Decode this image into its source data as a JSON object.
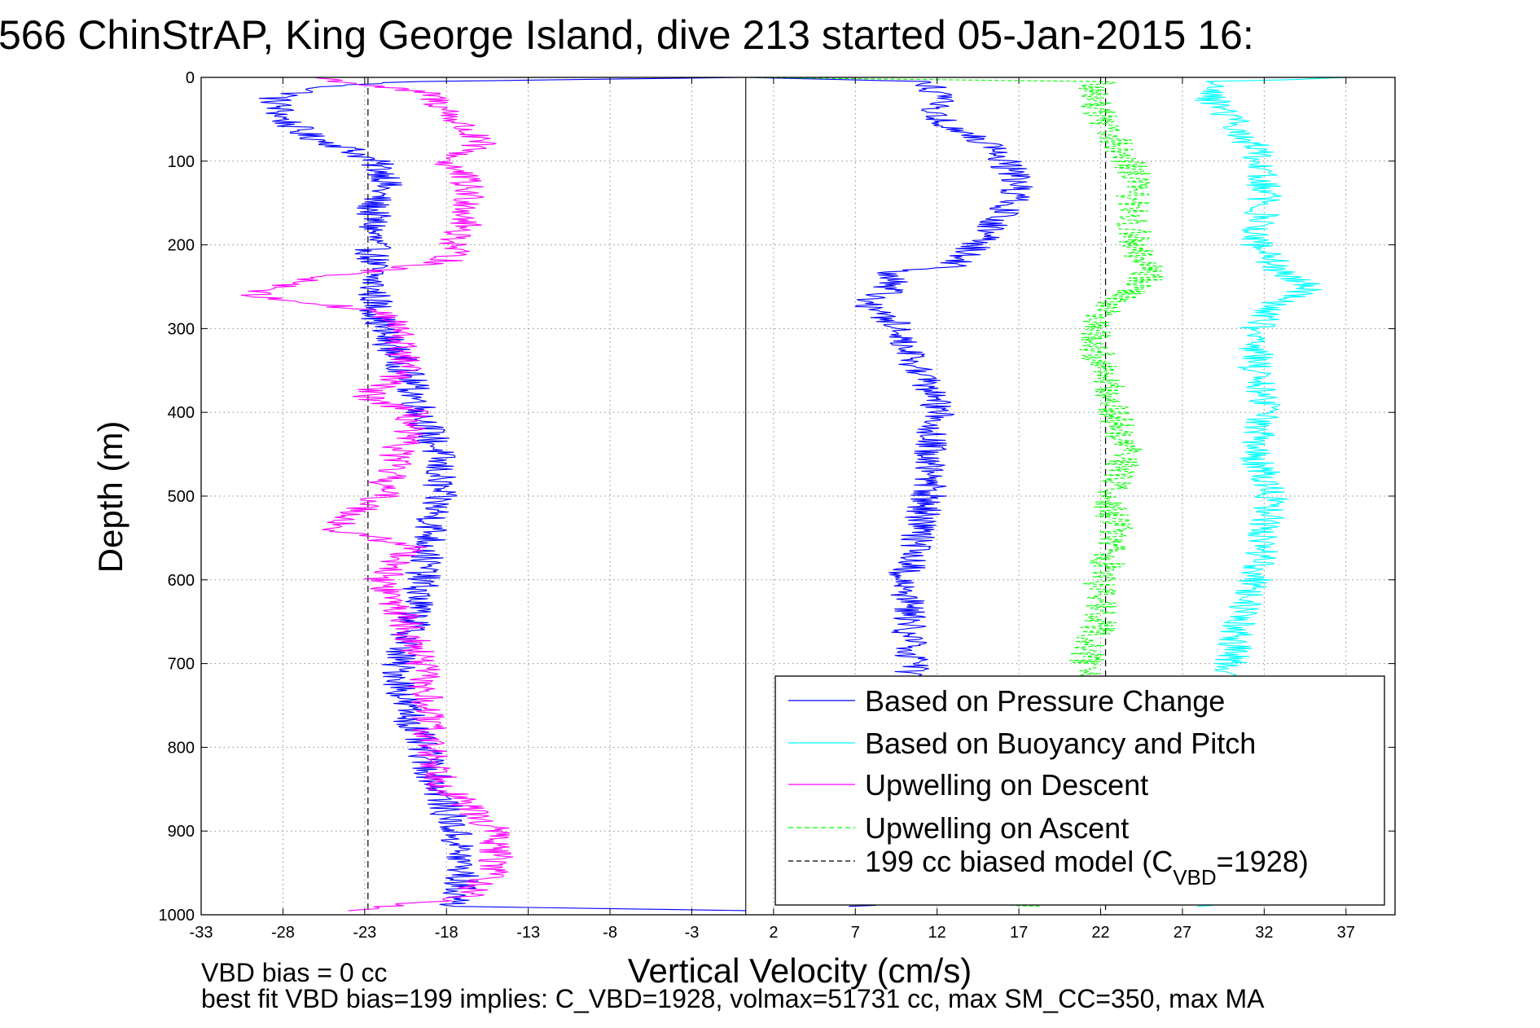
{
  "chart_data": {
    "type": "line",
    "title": "566 ChinStrAP, King George Island, dive 213 started 05-Jan-2015 16:",
    "xlabel": "Vertical Velocity (cm/s)",
    "ylabel": "Depth (m)",
    "xlim": [
      -33,
      40
    ],
    "ylim": [
      0,
      1000
    ],
    "y_reversed": true,
    "grid": true,
    "x_ticks": [
      "-33",
      "-28",
      "-23",
      "-18",
      "-13",
      "-8",
      "-3",
      "2",
      "7",
      "12",
      "17",
      "22",
      "27",
      "32",
      "37"
    ],
    "y_ticks": [
      "0",
      "100",
      "200",
      "300",
      "400",
      "500",
      "600",
      "700",
      "800",
      "900",
      "1000"
    ],
    "legend_position": "bottom-right",
    "legend": {
      "pressure": "Based on Pressure Change",
      "buoyancy": "Based on Buoyancy and Pitch",
      "up_descent": "Upwelling on Descent",
      "up_ascent": "Upwelling on Ascent",
      "model_prefix": "199 cc biased model (C",
      "model_sub": "VBD",
      "model_suffix": "=1928)"
    },
    "footer": {
      "line1": "VBD bias = 0 cc",
      "line2": "best fit VBD bias=199 implies: C_VBD=1928, volmax=51731 cc, max SM_CC=350, max MA"
    },
    "colors": {
      "pressure": "#0000ff",
      "buoyancy": "#00ffff",
      "up_descent": "#ff00ff",
      "up_ascent": "#00ff00",
      "model": "#000000",
      "grid": "#8c8c8c"
    },
    "zero_line_x": 0.3,
    "model_lines_x": [
      -22.8,
      22.3
    ],
    "series": [
      {
        "key": "pressure_descent",
        "name": "Based on Pressure Change",
        "color": "#0000ff",
        "style": "solid",
        "points": [
          [
            0.3,
            0
          ],
          [
            -20,
            5
          ],
          [
            -25,
            10
          ],
          [
            -28.5,
            25
          ],
          [
            -28,
            50
          ],
          [
            -26.5,
            70
          ],
          [
            -24,
            85
          ],
          [
            -22.5,
            100
          ],
          [
            -21.5,
            120
          ],
          [
            -22.5,
            150
          ],
          [
            -22.5,
            200
          ],
          [
            -22.5,
            250
          ],
          [
            -22,
            300
          ],
          [
            -20.5,
            350
          ],
          [
            -19.5,
            400
          ],
          [
            -18.5,
            450
          ],
          [
            -18.5,
            500
          ],
          [
            -19,
            550
          ],
          [
            -19.5,
            600
          ],
          [
            -20,
            650
          ],
          [
            -21,
            700
          ],
          [
            -20.5,
            750
          ],
          [
            -19.5,
            800
          ],
          [
            -18.5,
            850
          ],
          [
            -17.5,
            900
          ],
          [
            -17,
            950
          ],
          [
            -17.5,
            990
          ],
          [
            0.3,
            995
          ]
        ]
      },
      {
        "key": "pressure_ascent",
        "name": "",
        "color": "#0000ff",
        "style": "solid",
        "points": [
          [
            7.5,
            990
          ],
          [
            10.5,
            800
          ],
          [
            10.5,
            700
          ],
          [
            10,
            600
          ],
          [
            11.5,
            500
          ],
          [
            11.5,
            450
          ],
          [
            12,
            400
          ],
          [
            11,
            350
          ],
          [
            9.5,
            310
          ],
          [
            10,
            300
          ],
          [
            7.5,
            270
          ],
          [
            9,
            255
          ],
          [
            9.5,
            230
          ],
          [
            13,
            225
          ],
          [
            15,
            190
          ],
          [
            16.5,
            150
          ],
          [
            17,
            120
          ],
          [
            15,
            80
          ],
          [
            12,
            50
          ],
          [
            12,
            20
          ],
          [
            11.5,
            5
          ],
          [
            0.3,
            0
          ]
        ]
      },
      {
        "key": "up_descent",
        "name": "Upwelling on Descent",
        "color": "#ff00ff",
        "style": "solid",
        "points": [
          [
            -26,
            0
          ],
          [
            -19,
            20
          ],
          [
            -17,
            60
          ],
          [
            -16,
            80
          ],
          [
            -18,
            100
          ],
          [
            -17,
            120
          ],
          [
            -16.5,
            150
          ],
          [
            -17,
            180
          ],
          [
            -18,
            220
          ],
          [
            -26,
            240
          ],
          [
            -30,
            260
          ],
          [
            -22,
            280
          ],
          [
            -21,
            300
          ],
          [
            -20.5,
            350
          ],
          [
            -23,
            380
          ],
          [
            -20,
            400
          ],
          [
            -21,
            450
          ],
          [
            -22,
            500
          ],
          [
            -25,
            540
          ],
          [
            -20,
            560
          ],
          [
            -22,
            600
          ],
          [
            -20.5,
            650
          ],
          [
            -19.5,
            700
          ],
          [
            -19,
            800
          ],
          [
            -18,
            850
          ],
          [
            -15,
            900
          ],
          [
            -15,
            950
          ],
          [
            -17,
            980
          ],
          [
            -24,
            995
          ]
        ]
      },
      {
        "key": "up_ascent",
        "name": "Upwelling on Ascent",
        "color": "#00ff00",
        "style": "dashed",
        "points": [
          [
            17.5,
            990
          ],
          [
            22,
            800
          ],
          [
            21,
            700
          ],
          [
            22,
            650
          ],
          [
            22,
            600
          ],
          [
            23,
            550
          ],
          [
            22.5,
            500
          ],
          [
            23.5,
            450
          ],
          [
            23,
            400
          ],
          [
            22,
            350
          ],
          [
            21.5,
            300
          ],
          [
            22.5,
            270
          ],
          [
            24.5,
            250
          ],
          [
            25,
            230
          ],
          [
            24,
            200
          ],
          [
            24,
            150
          ],
          [
            24,
            110
          ],
          [
            23,
            80
          ],
          [
            22,
            50
          ],
          [
            21.5,
            20
          ],
          [
            22,
            5
          ],
          [
            0.3,
            0
          ]
        ]
      },
      {
        "key": "buoyancy",
        "name": "Based on Buoyancy and Pitch",
        "color": "#00ffff",
        "style": "solid",
        "points": [
          [
            28.5,
            990
          ],
          [
            29.5,
            800
          ],
          [
            30,
            700
          ],
          [
            30.5,
            650
          ],
          [
            31.5,
            600
          ],
          [
            32,
            550
          ],
          [
            32.5,
            500
          ],
          [
            31.5,
            450
          ],
          [
            32,
            400
          ],
          [
            31.5,
            350
          ],
          [
            31.5,
            300
          ],
          [
            32.5,
            270
          ],
          [
            35,
            250
          ],
          [
            33,
            230
          ],
          [
            31.5,
            200
          ],
          [
            32,
            150
          ],
          [
            32,
            100
          ],
          [
            30,
            50
          ],
          [
            28.5,
            20
          ],
          [
            29,
            5
          ],
          [
            37,
            0
          ]
        ]
      }
    ]
  }
}
